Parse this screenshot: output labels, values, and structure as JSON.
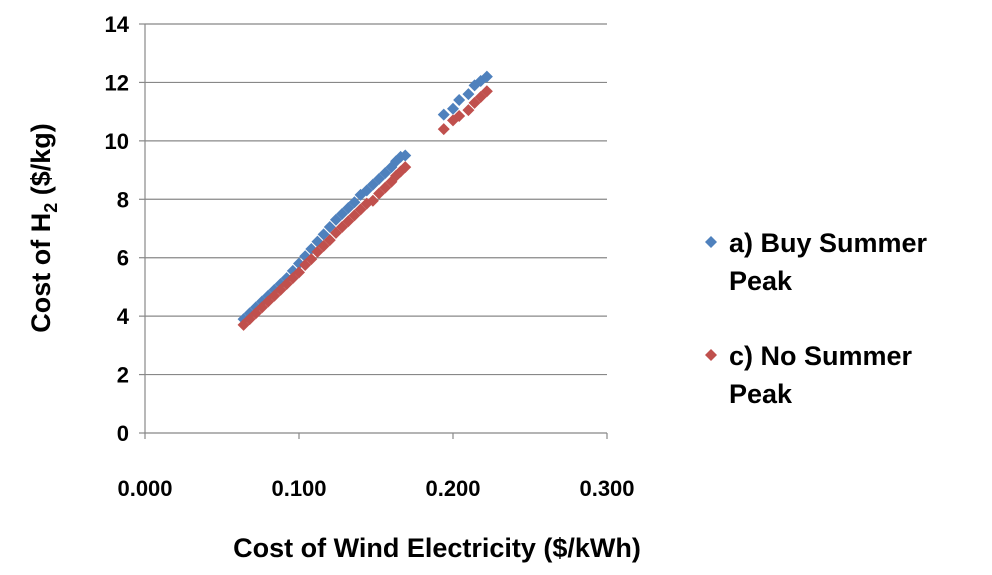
{
  "chart_data": {
    "type": "scatter",
    "xlabel": "Cost of Wind Electricity ($/kWh)",
    "ylabel": {
      "prefix": "Cost of H",
      "subscript": "2",
      "suffix": " ($/kg)"
    },
    "xlim": [
      0,
      0.3
    ],
    "ylim": [
      0,
      14
    ],
    "x_ticks": [
      0,
      0.1,
      0.2,
      0.3
    ],
    "x_tick_labels": [
      "0.000",
      "0.100",
      "0.200",
      "0.300"
    ],
    "y_ticks": [
      0,
      2,
      4,
      6,
      8,
      10,
      12,
      14
    ],
    "y_tick_labels": [
      "0",
      "2",
      "4",
      "6",
      "8",
      "10",
      "12",
      "14"
    ],
    "grid": "horizontal",
    "legend_position": "right",
    "marker": "diamond",
    "series": [
      {
        "name": "a) Buy Summer Peak",
        "color": "#4f81bd",
        "points": [
          [
            0.064,
            3.9
          ],
          [
            0.068,
            4.1
          ],
          [
            0.072,
            4.3
          ],
          [
            0.076,
            4.5
          ],
          [
            0.08,
            4.7
          ],
          [
            0.084,
            4.9
          ],
          [
            0.088,
            5.1
          ],
          [
            0.092,
            5.3
          ],
          [
            0.096,
            5.55
          ],
          [
            0.1,
            5.8
          ],
          [
            0.104,
            6.05
          ],
          [
            0.108,
            6.3
          ],
          [
            0.112,
            6.55
          ],
          [
            0.116,
            6.8
          ],
          [
            0.12,
            7.05
          ],
          [
            0.124,
            7.3
          ],
          [
            0.128,
            7.5
          ],
          [
            0.132,
            7.7
          ],
          [
            0.136,
            7.9
          ],
          [
            0.14,
            8.15
          ],
          [
            0.144,
            8.3
          ],
          [
            0.148,
            8.5
          ],
          [
            0.152,
            8.7
          ],
          [
            0.156,
            8.9
          ],
          [
            0.16,
            9.1
          ],
          [
            0.163,
            9.3
          ],
          [
            0.166,
            9.45
          ],
          [
            0.169,
            9.5
          ],
          [
            0.194,
            10.9
          ],
          [
            0.2,
            11.1
          ],
          [
            0.204,
            11.4
          ],
          [
            0.21,
            11.6
          ],
          [
            0.214,
            11.9
          ],
          [
            0.218,
            12.05
          ],
          [
            0.222,
            12.2
          ]
        ]
      },
      {
        "name": "c) No Summer Peak",
        "color": "#c0504d",
        "points": [
          [
            0.064,
            3.7
          ],
          [
            0.068,
            3.9
          ],
          [
            0.072,
            4.1
          ],
          [
            0.076,
            4.3
          ],
          [
            0.08,
            4.5
          ],
          [
            0.084,
            4.7
          ],
          [
            0.088,
            4.9
          ],
          [
            0.092,
            5.1
          ],
          [
            0.096,
            5.3
          ],
          [
            0.1,
            5.5
          ],
          [
            0.104,
            5.75
          ],
          [
            0.108,
            5.95
          ],
          [
            0.112,
            6.2
          ],
          [
            0.116,
            6.4
          ],
          [
            0.12,
            6.6
          ],
          [
            0.124,
            6.85
          ],
          [
            0.128,
            7.05
          ],
          [
            0.132,
            7.25
          ],
          [
            0.136,
            7.45
          ],
          [
            0.14,
            7.65
          ],
          [
            0.144,
            7.85
          ],
          [
            0.148,
            7.95
          ],
          [
            0.152,
            8.2
          ],
          [
            0.156,
            8.4
          ],
          [
            0.16,
            8.6
          ],
          [
            0.163,
            8.8
          ],
          [
            0.166,
            8.95
          ],
          [
            0.169,
            9.1
          ],
          [
            0.194,
            10.4
          ],
          [
            0.2,
            10.7
          ],
          [
            0.204,
            10.85
          ],
          [
            0.21,
            11.05
          ],
          [
            0.214,
            11.3
          ],
          [
            0.218,
            11.5
          ],
          [
            0.222,
            11.7
          ]
        ]
      }
    ],
    "legend_lines": [
      [
        "a) Buy Summer",
        "Peak"
      ],
      [
        "c) No Summer",
        "Peak"
      ]
    ]
  }
}
